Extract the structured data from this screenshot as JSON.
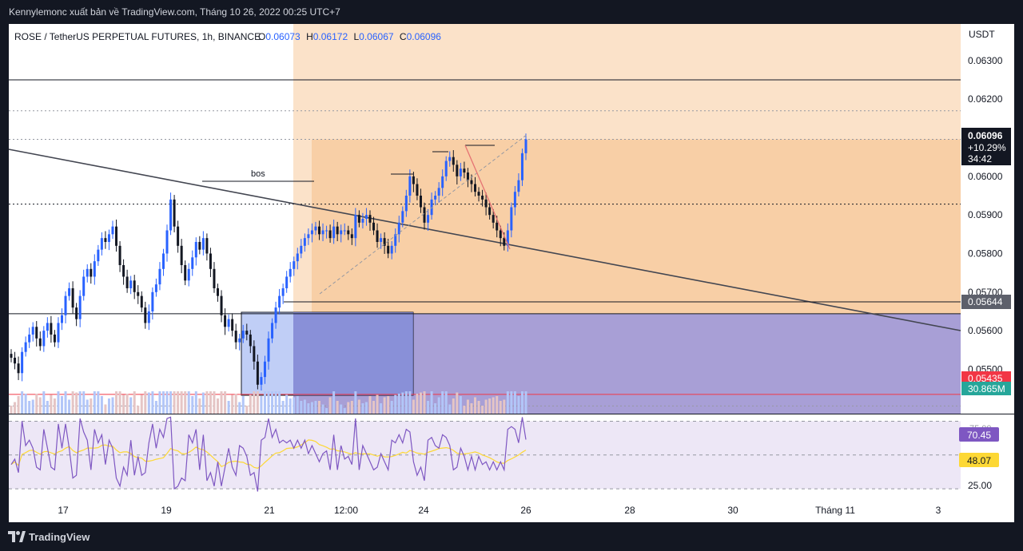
{
  "header": {
    "publisher_line": "Kennylemonc xuất bản về TradingView.com, Tháng 10 26, 2022 00:25 UTC+7"
  },
  "footer": {
    "brand": "TradingView"
  },
  "chart_data": {
    "type": "candlestick",
    "symbol_line": "ROSE / TetherUS PERPETUAL FUTURES, 1h, BINANCE",
    "ohlc": {
      "O_label": "O",
      "O": "0.06073",
      "H_label": "H",
      "H": "0.06172",
      "L_label": "L",
      "L": "0.06067",
      "C_label": "C",
      "C": "0.06096"
    },
    "currency": "USDT",
    "ylim": [
      0.05385,
      0.06395
    ],
    "y_ticks": [
      "0.06300",
      "0.06200",
      "0.06000",
      "0.05900",
      "0.05800",
      "0.05700",
      "0.05600",
      "0.05500"
    ],
    "x_ticks": [
      "17",
      "19",
      "21",
      "12:00",
      "24",
      "26",
      "28",
      "30",
      "Tháng 11",
      "3"
    ],
    "price_tag": {
      "price": "0.06096",
      "change": "+10.29%",
      "countdown": "34:42"
    },
    "level_tags": [
      {
        "label": "0.05644",
        "color": "#5d606b"
      },
      {
        "label": "0.05435",
        "color": "#f23645"
      },
      {
        "label": "30.865M",
        "color": "#26a69a"
      }
    ],
    "horizontal_lines": [
      {
        "price": 0.0625,
        "style": "solid",
        "color": "#131722"
      },
      {
        "price": 0.0617,
        "style": "dotted",
        "color": "#9598a1"
      },
      {
        "price": 0.06096,
        "style": "dotted",
        "color": "#9598a1"
      },
      {
        "price": 0.05928,
        "style": "dotted",
        "color": "#131722"
      },
      {
        "price": 0.05644,
        "style": "solid",
        "color": "#131722"
      },
      {
        "price": 0.05435,
        "style": "solid",
        "color": "#f23645"
      },
      {
        "price": 0.05405,
        "style": "dotted",
        "color": "#9598a1"
      }
    ],
    "annotations": [
      {
        "text": "bos"
      }
    ],
    "close_series": [
      0.0553,
      0.05515,
      0.0549,
      0.05545,
      0.0557,
      0.0559,
      0.0561,
      0.0558,
      0.0556,
      0.056,
      0.0562,
      0.0559,
      0.0557,
      0.0562,
      0.0564,
      0.0569,
      0.0571,
      0.0566,
      0.0563,
      0.0569,
      0.0574,
      0.0576,
      0.0574,
      0.0578,
      0.0581,
      0.0584,
      0.0583,
      0.0585,
      0.0587,
      0.0582,
      0.0577,
      0.0574,
      0.0571,
      0.0573,
      0.057,
      0.0569,
      0.0566,
      0.0562,
      0.0565,
      0.057,
      0.0572,
      0.0576,
      0.058,
      0.0586,
      0.0594,
      0.0587,
      0.0582,
      0.0577,
      0.0573,
      0.0576,
      0.0579,
      0.0583,
      0.0581,
      0.0584,
      0.058,
      0.0576,
      0.0571,
      0.0569,
      0.0564,
      0.0561,
      0.0563,
      0.056,
      0.0557,
      0.0558,
      0.056,
      0.0559,
      0.0556,
      0.0552,
      0.0546,
      0.0548,
      0.0552,
      0.0558,
      0.0562,
      0.0566,
      0.0569,
      0.0571,
      0.0574,
      0.0576,
      0.0578,
      0.058,
      0.0582,
      0.0584,
      0.0585,
      0.0586,
      0.0587,
      0.0585,
      0.0586,
      0.0586,
      0.0584,
      0.0587,
      0.0585,
      0.0586,
      0.0586,
      0.0585,
      0.0584,
      0.059,
      0.0588,
      0.0589,
      0.059,
      0.0588,
      0.0586,
      0.0583,
      0.0584,
      0.0582,
      0.058,
      0.0582,
      0.0585,
      0.0588,
      0.0591,
      0.0595,
      0.06,
      0.0598,
      0.0595,
      0.0592,
      0.0588,
      0.059,
      0.0594,
      0.0595,
      0.0597,
      0.06,
      0.0604,
      0.0605,
      0.0603,
      0.06,
      0.0602,
      0.0601,
      0.0599,
      0.0598,
      0.0596,
      0.0595,
      0.0594,
      0.0592,
      0.059,
      0.0588,
      0.0586,
      0.0584,
      0.0582,
      0.0586,
      0.0592,
      0.0596,
      0.0599,
      0.0606,
      0.06096
    ],
    "volume_spike": "30.865M",
    "rsi": {
      "levels": {
        "upper": 75.0,
        "mid": 50.0,
        "lower": 25.0
      },
      "ylim": [
        18,
        80
      ],
      "tick_labels": [
        "25.00"
      ],
      "upper_label_partial": "75.00",
      "value_label": "70.45",
      "ma_label": "48.07",
      "rsi_color": "#7e57c2",
      "ma_color": "#fdd835"
    },
    "zones": [
      {
        "name": "supply-premium-zone",
        "color": "#fbe2c9"
      },
      {
        "name": "supply-zone",
        "color": "#f8cfa6"
      },
      {
        "name": "demand-zone",
        "color": "#a89fd6"
      },
      {
        "name": "order-block",
        "color": "#b5c6f5"
      }
    ],
    "colors": {
      "candle_up": "#2962ff",
      "candle_down": "#131722",
      "trendline": "#434651",
      "accent_sell_leg": "#e57373"
    }
  }
}
